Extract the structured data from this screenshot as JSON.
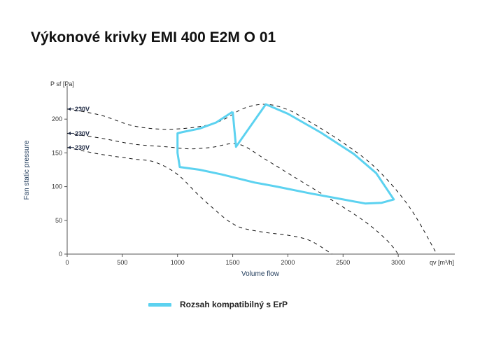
{
  "page": {
    "title": "Výkonové krivky EMI 400 E2M O 01"
  },
  "chart_data": {
    "type": "line",
    "xlabel": "Volume flow",
    "ylabel": "Fan static pressure",
    "x_unit_label": "qv [m³/h]",
    "y_unit_label": "P sf [Pa]",
    "xlim": [
      0,
      3500
    ],
    "ylim": [
      0,
      250
    ],
    "xticks": [
      0,
      500,
      1000,
      1500,
      2000,
      2500,
      3000
    ],
    "yticks": [
      0,
      50,
      100,
      150,
      200
    ],
    "grid": false,
    "curve_labels": [
      {
        "text": "230V",
        "y": 215
      },
      {
        "text": "230V",
        "y": 179
      },
      {
        "text": "230V",
        "y": 158
      }
    ],
    "series": [
      {
        "style": "dashed",
        "x": [
          0,
          300,
          600,
          900,
          1200,
          1400,
          1600,
          1800,
          2000,
          2200,
          2500,
          2800,
          3100,
          3350
        ],
        "y": [
          215,
          206,
          190,
          185,
          189,
          198,
          216,
          222,
          214,
          196,
          165,
          127,
          70,
          0
        ]
      },
      {
        "style": "dashed",
        "x": [
          0,
          300,
          600,
          900,
          1100,
          1300,
          1550,
          1800,
          2100,
          2400,
          2700,
          2900,
          3000
        ],
        "y": [
          179,
          172,
          163,
          159,
          156,
          158,
          163,
          140,
          110,
          80,
          48,
          20,
          0
        ]
      },
      {
        "style": "dashed",
        "x": [
          0,
          300,
          600,
          800,
          1000,
          1200,
          1400,
          1500,
          1600,
          1800,
          2000,
          2200,
          2400
        ],
        "y": [
          158,
          148,
          141,
          136,
          118,
          86,
          57,
          45,
          38,
          32,
          28,
          20,
          0
        ]
      },
      {
        "name": "Rozsah kompatibilný s ErP",
        "style": "solid",
        "color": "#5cd2f0",
        "x": [
          1500,
          1530,
          1800,
          2000,
          2300,
          2600,
          2800,
          2960,
          2850,
          2700,
          2500,
          2200,
          1900,
          1700,
          1400,
          1200,
          1020,
          1000,
          1000,
          1050,
          1200,
          1350,
          1500
        ],
        "y": [
          211,
          159,
          222,
          208,
          180,
          148,
          120,
          81,
          76,
          75,
          81,
          90,
          100,
          106,
          118,
          125,
          129,
          150,
          179,
          181,
          186,
          195,
          211
        ]
      }
    ]
  },
  "legend": {
    "label": "Rozsah kompatibilný s ErP",
    "color": "#5cd2f0"
  }
}
